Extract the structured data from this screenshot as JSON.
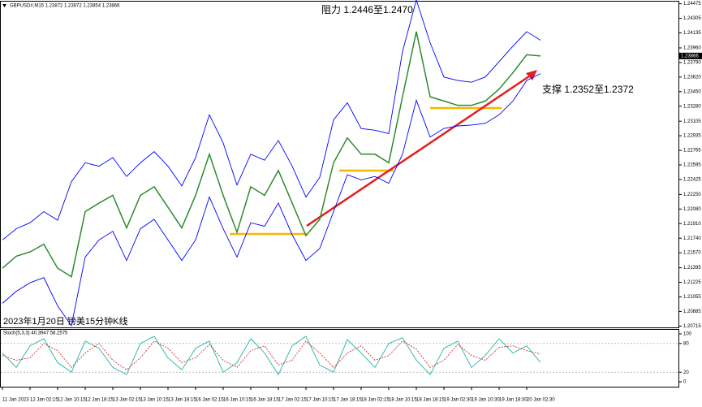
{
  "chart_data": [
    {
      "type": "line",
      "title": "GBPUSD#,M15  1.23872 1.23872 1.23854 1.23866",
      "annotations": [
        "阻力 1.2446至1.2470",
        "支撑 1.2352至1.2372",
        "2023年1月20日 镑美15分钟K线"
      ],
      "last_price": 1.23866,
      "categories": [
        "11 Jan 2023",
        null,
        "12 Jan 02:15",
        null,
        "12 Jan 10:15",
        null,
        "12 Jan 18:15",
        null,
        "13 Jan 02:15",
        null,
        "13 Jan 10:15",
        null,
        "13 Jan 18:15",
        null,
        "16 Jan 02:15",
        null,
        "16 Jan 10:15",
        null,
        "16 Jan 18:15",
        null,
        "17 Jan 02:15",
        null,
        "17 Jan 10:15",
        null,
        "17 Jan 18:15",
        null,
        "18 Jan 02:15",
        null,
        "18 Jan 10:15",
        null,
        "18 Jan 18:15",
        null,
        "19 Jan 02:30",
        null,
        "19 Jan 10:30",
        null,
        "19 Jan 18:30",
        null,
        "20 Jan 02:30",
        null
      ],
      "series": [
        {
          "color": "#2e8b2e",
          "values": [
            1.2139,
            1.2153,
            1.2158,
            1.2167,
            1.2139,
            1.2129,
            1.2205,
            1.2215,
            1.2224,
            1.2186,
            1.2224,
            1.2234,
            1.221,
            1.2186,
            1.2224,
            1.2272,
            1.2224,
            1.2181,
            1.2234,
            1.2224,
            1.2253,
            1.2215,
            1.2177,
            1.2196,
            1.2262,
            1.2291,
            1.2272,
            1.2272,
            1.2262,
            1.2339,
            1.2415,
            1.2339,
            1.2334,
            1.2329,
            1.2329,
            1.2334,
            1.2348,
            1.2367,
            1.2388,
            1.23866
          ]
        },
        {
          "color": "#0000ff",
          "values": [
            1.2172,
            1.2185,
            1.2192,
            1.2205,
            1.2195,
            1.224,
            1.2262,
            1.2258,
            1.2268,
            1.2246,
            1.2262,
            1.2275,
            1.2258,
            1.2235,
            1.2268,
            1.2318,
            1.2285,
            1.2236,
            1.2272,
            1.2265,
            1.2288,
            1.2258,
            1.2222,
            1.2245,
            1.2312,
            1.2332,
            1.2302,
            1.23,
            1.2296,
            1.2392,
            1.2452,
            1.2402,
            1.2362,
            1.2358,
            1.2356,
            1.2362,
            1.238,
            1.2398,
            1.2415,
            1.2405
          ]
        },
        {
          "color": "#0000ff",
          "values": [
            1.2098,
            1.2112,
            1.2122,
            1.2128,
            1.2095,
            1.2072,
            1.2152,
            1.2172,
            1.2182,
            1.2148,
            1.2185,
            1.2196,
            1.2172,
            1.2148,
            1.2172,
            1.2222,
            1.2185,
            1.2152,
            1.2192,
            1.2188,
            1.2215,
            1.2178,
            1.2148,
            1.2162,
            1.2205,
            1.2248,
            1.2242,
            1.2246,
            1.2238,
            1.2272,
            1.2335,
            1.2292,
            1.2302,
            1.2305,
            1.2306,
            1.2308,
            1.2318,
            1.2334,
            1.2358,
            1.2366
          ]
        }
      ],
      "ylim": [
        1.2069,
        1.245
      ],
      "yticks": [
        1.24475,
        1.24305,
        1.24135,
        {
          "value": 1.2396,
          "label": "1.23960"
        },
        {
          "value": 1.2379,
          "label": "1.23790"
        },
        {
          "value": 1.2362,
          "label": "1.23620"
        },
        {
          "value": 1.2345,
          "label": "1.23450"
        },
        {
          "value": 1.2328,
          "label": "1.23280"
        },
        1.23105,
        1.22935,
        1.22765,
        1.22595,
        1.22425,
        {
          "value": 1.2225,
          "label": "1.22250"
        },
        {
          "value": 1.2208,
          "label": "1.22080"
        },
        {
          "value": 1.2191,
          "label": "1.21910"
        },
        {
          "value": 1.2174,
          "label": "1.21740"
        },
        {
          "value": 1.2157,
          "label": "1.21570"
        },
        1.21395,
        1.21225,
        1.21055,
        1.20885,
        1.20715
      ]
    },
    {
      "type": "line",
      "title": "Stoch(5,3,3) 40.3947 58.2575",
      "series": [
        {
          "color": "#20b2aa",
          "values": [
            60,
            30,
            75,
            90,
            40,
            20,
            85,
            70,
            30,
            15,
            80,
            95,
            50,
            25,
            70,
            85,
            20,
            40,
            90,
            60,
            15,
            75,
            95,
            35,
            20,
            88,
            60,
            30,
            80,
            92,
            45,
            15,
            70,
            85,
            30,
            55,
            90,
            60,
            75,
            40.3947
          ]
        },
        {
          "color": "#d03030",
          "values": [
            55,
            45,
            50,
            80,
            65,
            30,
            60,
            80,
            45,
            25,
            50,
            85,
            70,
            40,
            50,
            78,
            45,
            30,
            65,
            75,
            35,
            45,
            85,
            60,
            30,
            60,
            75,
            45,
            55,
            85,
            68,
            30,
            45,
            78,
            55,
            45,
            72,
            75,
            65,
            58.2575
          ]
        }
      ],
      "ylim": [
        0,
        100
      ],
      "yticks": [
        100,
        80,
        20,
        0
      ]
    }
  ]
}
